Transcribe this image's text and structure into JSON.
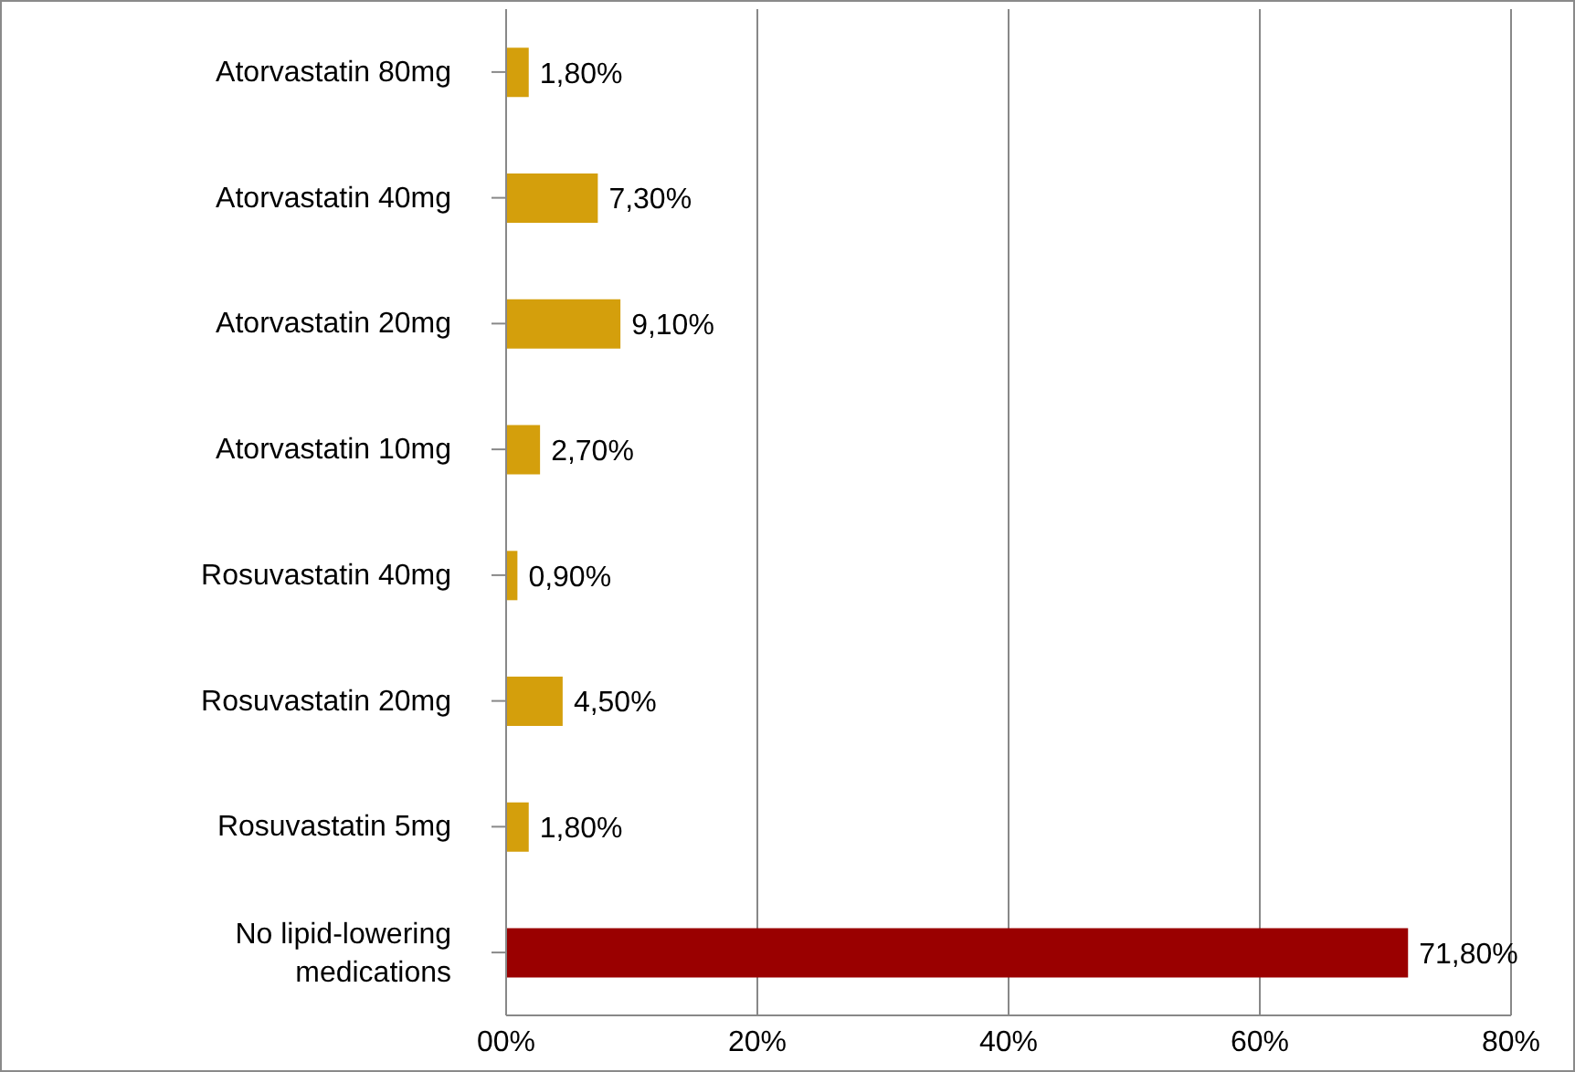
{
  "chart_data": {
    "type": "bar",
    "orientation": "horizontal",
    "categories": [
      "Atorvastatin 80mg",
      "Atorvastatin 40mg",
      "Atorvastatin 20mg",
      "Atorvastatin 10mg",
      "Rosuvastatin 40mg",
      "Rosuvastatin 20mg",
      "Rosuvastatin 5mg",
      "No lipid-lowering medications"
    ],
    "values": [
      1.8,
      7.3,
      9.1,
      2.7,
      0.9,
      4.5,
      1.8,
      71.8
    ],
    "colors": [
      "#d49f0c",
      "#d49f0c",
      "#d49f0c",
      "#d49f0c",
      "#d49f0c",
      "#d49f0c",
      "#d49f0c",
      "#9a0000"
    ],
    "value_labels": [
      "1,80%",
      "7,30%",
      "9,10%",
      "2,70%",
      "0,90%",
      "4,50%",
      "1,80%",
      "71,80%"
    ],
    "xlim": [
      0,
      80
    ],
    "xticks": [
      {
        "value": 0,
        "label": "00%"
      },
      {
        "value": 20,
        "label": "20%"
      },
      {
        "value": 40,
        "label": "40%"
      },
      {
        "value": 60,
        "label": "60%"
      },
      {
        "value": 80,
        "label": "80%"
      }
    ],
    "grid": "x",
    "legend": false
  }
}
